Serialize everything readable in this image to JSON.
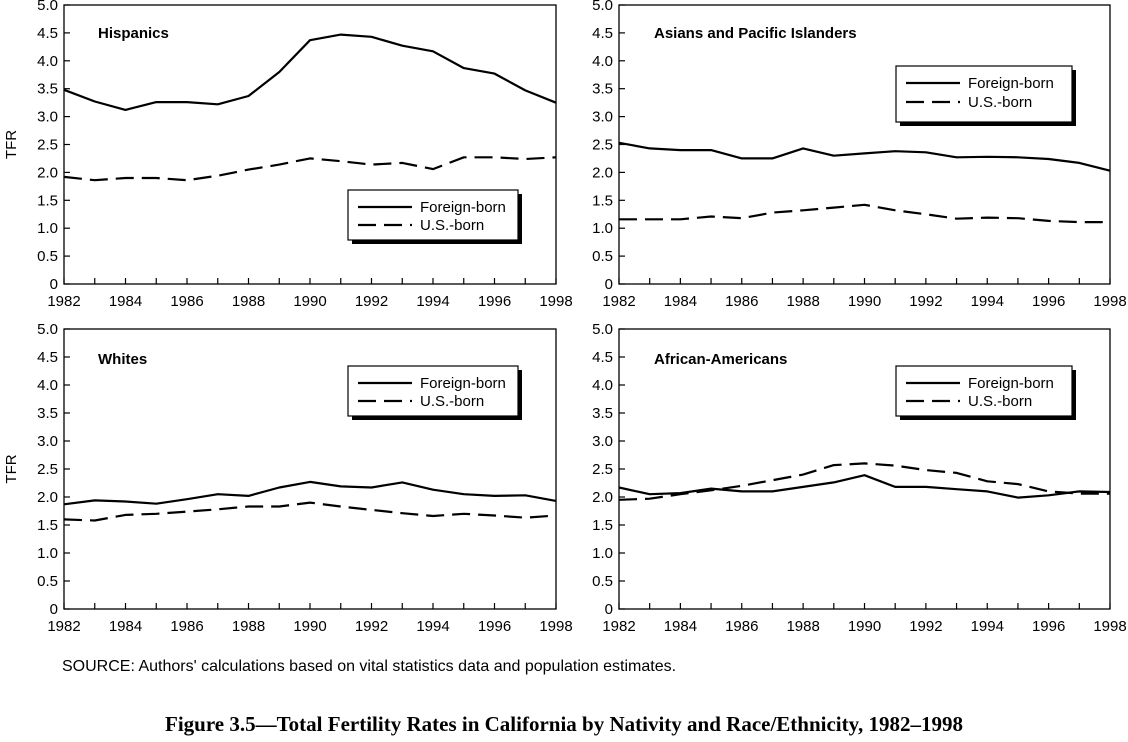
{
  "figure_caption": "Figure 3.5—Total Fertility Rates in California by Nativity and Race/Ethnicity, 1982–1998",
  "source_note": "SOURCE:  Authors' calculations based on vital statistics data and population estimates.",
  "chart_data": [
    {
      "type": "line",
      "title": "Hispanics",
      "ylabel": "TFR",
      "xlabel": "",
      "xlim": [
        1982,
        1998
      ],
      "ylim": [
        0,
        5
      ],
      "xticks": [
        "1982",
        "1984",
        "1986",
        "1988",
        "1990",
        "1992",
        "1994",
        "1996",
        "1998"
      ],
      "yticks": [
        "0",
        "0.5",
        "1.0",
        "1.5",
        "2.0",
        "2.5",
        "3.0",
        "3.5",
        "4.0",
        "4.5",
        "5.0"
      ],
      "legend_position": "lower-right",
      "x": [
        1982,
        1983,
        1984,
        1985,
        1986,
        1987,
        1988,
        1989,
        1990,
        1991,
        1992,
        1993,
        1994,
        1995,
        1996,
        1997,
        1998
      ],
      "series": [
        {
          "name": "Foreign-born",
          "style": "solid",
          "values": [
            3.48,
            3.27,
            3.12,
            3.26,
            3.26,
            3.22,
            3.37,
            3.8,
            4.37,
            4.47,
            4.43,
            4.27,
            4.17,
            3.87,
            3.77,
            3.47,
            3.25
          ]
        },
        {
          "name": "U.S.-born",
          "style": "dashed",
          "values": [
            1.92,
            1.86,
            1.9,
            1.9,
            1.86,
            1.94,
            2.05,
            2.14,
            2.25,
            2.2,
            2.14,
            2.17,
            2.06,
            2.27,
            2.27,
            2.24,
            2.27
          ]
        }
      ]
    },
    {
      "type": "line",
      "title": "Asians and Pacific Islanders",
      "ylabel": "",
      "xlabel": "",
      "xlim": [
        1982,
        1998
      ],
      "ylim": [
        0,
        5
      ],
      "xticks": [
        "1982",
        "1984",
        "1986",
        "1988",
        "1990",
        "1992",
        "1994",
        "1996",
        "1998"
      ],
      "yticks": [
        "0",
        "0.5",
        "1.0",
        "1.5",
        "2.0",
        "2.5",
        "3.0",
        "3.5",
        "4.0",
        "4.5",
        "5.0"
      ],
      "legend_position": "top-right",
      "x": [
        1982,
        1983,
        1984,
        1985,
        1986,
        1987,
        1988,
        1989,
        1990,
        1991,
        1992,
        1993,
        1994,
        1995,
        1996,
        1997,
        1998
      ],
      "series": [
        {
          "name": "Foreign-born",
          "style": "solid",
          "values": [
            2.53,
            2.43,
            2.4,
            2.4,
            2.25,
            2.25,
            2.43,
            2.3,
            2.34,
            2.38,
            2.36,
            2.27,
            2.28,
            2.27,
            2.24,
            2.17,
            2.03
          ]
        },
        {
          "name": "U.S.-born",
          "style": "dashed",
          "values": [
            1.16,
            1.16,
            1.16,
            1.21,
            1.18,
            1.28,
            1.32,
            1.37,
            1.42,
            1.32,
            1.25,
            1.17,
            1.19,
            1.18,
            1.13,
            1.11,
            1.11
          ]
        }
      ]
    },
    {
      "type": "line",
      "title": "Whites",
      "ylabel": "TFR",
      "xlabel": "",
      "xlim": [
        1982,
        1998
      ],
      "ylim": [
        0,
        5
      ],
      "xticks": [
        "1982",
        "1984",
        "1986",
        "1988",
        "1990",
        "1992",
        "1994",
        "1996",
        "1998"
      ],
      "yticks": [
        "0",
        "0.5",
        "1.0",
        "1.5",
        "2.0",
        "2.5",
        "3.0",
        "3.5",
        "4.0",
        "4.5",
        "5.0"
      ],
      "legend_position": "top-right",
      "x": [
        1982,
        1983,
        1984,
        1985,
        1986,
        1987,
        1988,
        1989,
        1990,
        1991,
        1992,
        1993,
        1994,
        1995,
        1996,
        1997,
        1998
      ],
      "series": [
        {
          "name": "Foreign-born",
          "style": "solid",
          "values": [
            1.87,
            1.94,
            1.92,
            1.88,
            1.96,
            2.05,
            2.02,
            2.17,
            2.27,
            2.19,
            2.17,
            2.26,
            2.13,
            2.05,
            2.02,
            2.03,
            1.93
          ]
        },
        {
          "name": "U.S.-born",
          "style": "dashed",
          "values": [
            1.6,
            1.58,
            1.68,
            1.7,
            1.74,
            1.78,
            1.83,
            1.83,
            1.9,
            1.83,
            1.77,
            1.71,
            1.66,
            1.7,
            1.67,
            1.63,
            1.67
          ]
        }
      ]
    },
    {
      "type": "line",
      "title": "African-Americans",
      "ylabel": "",
      "xlabel": "",
      "xlim": [
        1982,
        1998
      ],
      "ylim": [
        0,
        5
      ],
      "xticks": [
        "1982",
        "1984",
        "1986",
        "1988",
        "1990",
        "1992",
        "1994",
        "1996",
        "1998"
      ],
      "yticks": [
        "0",
        "0.5",
        "1.0",
        "1.5",
        "2.0",
        "2.5",
        "3.0",
        "3.5",
        "4.0",
        "4.5",
        "5.0"
      ],
      "legend_position": "top-right",
      "x": [
        1982,
        1983,
        1984,
        1985,
        1986,
        1987,
        1988,
        1989,
        1990,
        1991,
        1992,
        1993,
        1994,
        1995,
        1996,
        1997,
        1998
      ],
      "series": [
        {
          "name": "Foreign-born",
          "style": "solid",
          "values": [
            2.17,
            2.05,
            2.07,
            2.15,
            2.1,
            2.1,
            2.18,
            2.26,
            2.39,
            2.18,
            2.18,
            2.14,
            2.1,
            1.99,
            2.03,
            2.1,
            2.09
          ]
        },
        {
          "name": "U.S.-born",
          "style": "dashed",
          "values": [
            1.95,
            1.97,
            2.05,
            2.12,
            2.2,
            2.3,
            2.4,
            2.57,
            2.6,
            2.56,
            2.48,
            2.43,
            2.28,
            2.23,
            2.1,
            2.06,
            2.06
          ]
        }
      ]
    }
  ]
}
